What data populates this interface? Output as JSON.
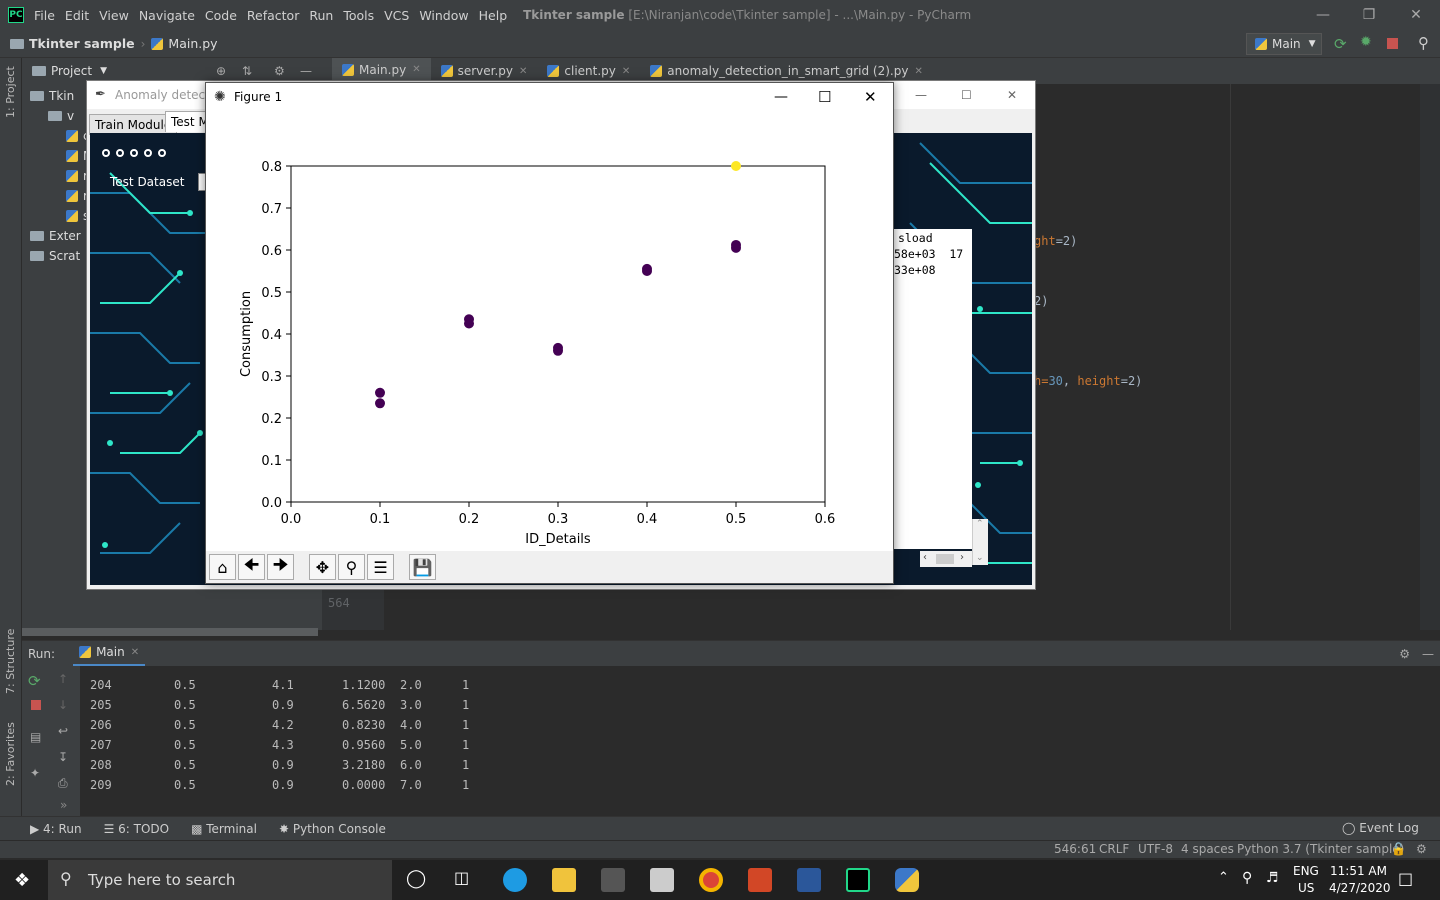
{
  "pycharm": {
    "menu": [
      "File",
      "Edit",
      "View",
      "Navigate",
      "Code",
      "Refactor",
      "Run",
      "Tools",
      "VCS",
      "Window",
      "Help"
    ],
    "window_title_project": "Tkinter sample",
    "window_title_rest": " [E:\\Niranjan\\code\\Tkinter sample] - ...\\Main.py - PyCharm",
    "logo_text": "PC",
    "breadcrumb": [
      "Tkinter sample",
      "Main.py"
    ],
    "run_config": "Main",
    "project_header": "Project",
    "left_strip_labels": [
      "1: Project",
      "7: Structure",
      "2: Favorites"
    ],
    "tree": [
      {
        "label": "Tkin",
        "indent": 0
      },
      {
        "label": "v",
        "indent": 1
      },
      {
        "label": "c",
        "indent": 2
      },
      {
        "label": "M",
        "indent": 2
      },
      {
        "label": "re",
        "indent": 2
      },
      {
        "label": "re",
        "indent": 2
      },
      {
        "label": "s",
        "indent": 2
      },
      {
        "label": "Exter",
        "indent": 0
      },
      {
        "label": "Scrat",
        "indent": 0
      }
    ],
    "tabs": [
      {
        "label": "Main.py",
        "active": true
      },
      {
        "label": "server.py",
        "active": false
      },
      {
        "label": "client.py",
        "active": false
      },
      {
        "label": "anomaly_detection_in_smart_grid (2).py",
        "active": false
      }
    ],
    "code_fragments": {
      "line1_a": "ght",
      "line1_b": "=2)",
      "line2": "2)",
      "line3_a": "h=",
      "line3_b": "30",
      "line3_c": ", ",
      "line3_d": "height",
      "line3_e": "=2)"
    },
    "gutter_line": "564",
    "run_label": "Run:",
    "run_tab": "Main",
    "output_rows": [
      [
        "204",
        "0.5",
        "4.1",
        "1.1200",
        "2.0",
        "1"
      ],
      [
        "205",
        "0.5",
        "0.9",
        "6.5620",
        "3.0",
        "1"
      ],
      [
        "206",
        "0.5",
        "4.2",
        "0.8230",
        "4.0",
        "1"
      ],
      [
        "207",
        "0.5",
        "4.3",
        "0.9560",
        "5.0",
        "1"
      ],
      [
        "208",
        "0.5",
        "0.9",
        "3.2180",
        "6.0",
        "1"
      ],
      [
        "209",
        "0.5",
        "0.9",
        "0.0000",
        "7.0",
        "1"
      ]
    ],
    "bottom_tools": [
      "4: Run",
      "6: TODO",
      "Terminal",
      "Python Console"
    ],
    "event_log": "Event Log",
    "status": {
      "pos": "546:61",
      "eol": "CRLF",
      "enc": "UTF-8",
      "indent": "4 spaces",
      "interp": "Python 3.7 (Tkinter sample)"
    }
  },
  "tkwin": {
    "title": "Anomaly detecti",
    "tabs": [
      "Train Module",
      "Test M"
    ],
    "test_dataset_label": "Test Dataset",
    "text_lines": [
      "sload",
      "58e+03  17",
      "33e+08"
    ]
  },
  "figure": {
    "title": "Figure 1",
    "toolbar": [
      "home-icon",
      "back-icon",
      "forward-icon",
      "pan-icon",
      "zoom-icon",
      "configure-icon",
      "save-icon"
    ]
  },
  "chart_data": {
    "type": "scatter",
    "xlabel": "ID_Details",
    "ylabel": "Consumption",
    "xlim": [
      0.0,
      0.6
    ],
    "ylim": [
      0.0,
      0.8
    ],
    "xticks": [
      "0.0",
      "0.1",
      "0.2",
      "0.3",
      "0.4",
      "0.5",
      "0.6"
    ],
    "yticks": [
      "0.0",
      "0.1",
      "0.2",
      "0.3",
      "0.4",
      "0.5",
      "0.6",
      "0.7",
      "0.8"
    ],
    "grid": false,
    "points": [
      {
        "x": 0.1,
        "y": 0.235,
        "color": "#440154"
      },
      {
        "x": 0.1,
        "y": 0.26,
        "color": "#440154"
      },
      {
        "x": 0.2,
        "y": 0.425,
        "color": "#440154"
      },
      {
        "x": 0.2,
        "y": 0.435,
        "color": "#440154"
      },
      {
        "x": 0.3,
        "y": 0.36,
        "color": "#440154"
      },
      {
        "x": 0.3,
        "y": 0.367,
        "color": "#440154"
      },
      {
        "x": 0.4,
        "y": 0.55,
        "color": "#440154"
      },
      {
        "x": 0.4,
        "y": 0.555,
        "color": "#440154"
      },
      {
        "x": 0.5,
        "y": 0.605,
        "color": "#440154"
      },
      {
        "x": 0.5,
        "y": 0.612,
        "color": "#440154"
      },
      {
        "x": 0.5,
        "y": 0.8,
        "color": "#fde725"
      }
    ]
  },
  "taskbar": {
    "search_placeholder": "Type here to search",
    "lang1": "ENG",
    "lang2": "US",
    "time": "11:51 AM",
    "date": "4/27/2020"
  }
}
